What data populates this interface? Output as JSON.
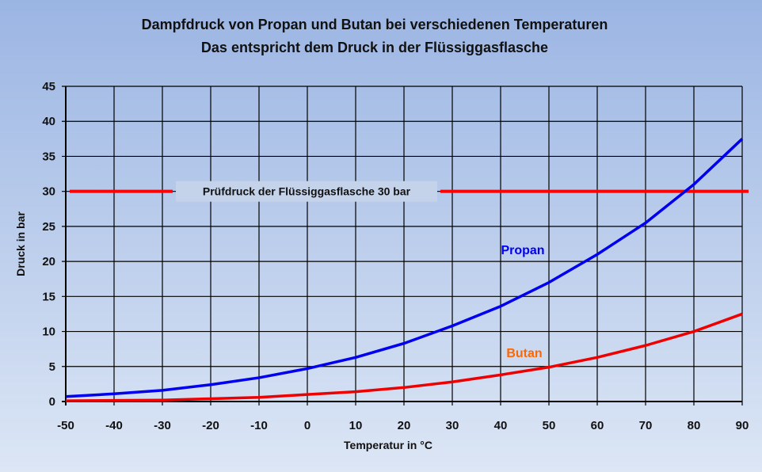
{
  "chart_data": {
    "type": "line",
    "title": "Dampfdruck von Propan und Butan bei verschiedenen Temperaturen",
    "subtitle": "Das entspricht dem Druck in der Flüssiggasflasche",
    "xlabel": "Temperatur in °C",
    "ylabel": "Druck in bar",
    "xlim": [
      -50,
      90
    ],
    "ylim": [
      0,
      45
    ],
    "xticks": [
      -50,
      -40,
      -30,
      -20,
      -10,
      0,
      10,
      20,
      30,
      40,
      50,
      60,
      70,
      80,
      90
    ],
    "yticks": [
      0,
      5,
      10,
      15,
      20,
      25,
      30,
      35,
      40,
      45
    ],
    "grid": true,
    "x": [
      -50,
      -40,
      -30,
      -20,
      -10,
      0,
      10,
      20,
      30,
      40,
      50,
      60,
      70,
      80,
      90
    ],
    "series": [
      {
        "name": "Propan",
        "color": "#0000ee",
        "values": [
          0.7,
          1.1,
          1.6,
          2.4,
          3.4,
          4.7,
          6.3,
          8.3,
          10.8,
          13.6,
          17.0,
          21.0,
          25.5,
          31.0,
          37.5
        ]
      },
      {
        "name": "Butan",
        "color": "#ee0000",
        "label_color": "#ff6600",
        "values": [
          0.1,
          0.15,
          0.2,
          0.4,
          0.6,
          1.0,
          1.4,
          2.0,
          2.8,
          3.8,
          4.9,
          6.3,
          8.0,
          10.0,
          12.5
        ]
      }
    ],
    "reference_line": {
      "y": 30,
      "color": "#ff0000",
      "label": "Prüfdruck der Flüssiggasflasche 30 bar"
    }
  }
}
